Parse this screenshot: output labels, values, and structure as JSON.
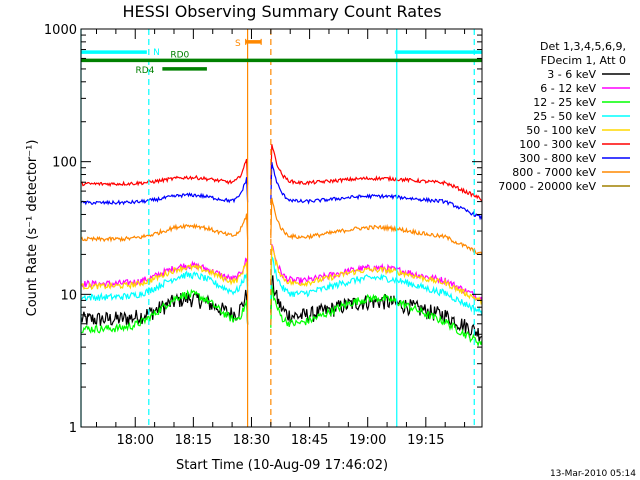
{
  "chart_data": {
    "type": "line",
    "title": "HESSI Observing Summary Count Rates",
    "xlabel": "Start Time (10-Aug-09 17:46:02)",
    "ylabel": "Count Rate (s⁻¹ detector⁻¹)",
    "yscale": "log",
    "ylim": [
      1,
      1000
    ],
    "xlim_minutes_from_start": [
      0,
      103.5
    ],
    "x_tick_labels": [
      "18:00",
      "18:15",
      "18:30",
      "18:45",
      "19:00",
      "19:15"
    ],
    "x_tick_minutes": [
      14,
      29,
      44,
      59,
      74,
      89
    ],
    "y_tick_labels": [
      "1",
      "10",
      "100",
      "1000"
    ],
    "y_tick_values": [
      1,
      10,
      100,
      1000
    ],
    "grid": false,
    "legend_position": "right",
    "legend_header": [
      "Det 1,3,4,5,6,9,",
      "FDecim 1, Att 0"
    ],
    "series": [
      {
        "name": "3 - 6 keV",
        "color": "#000000",
        "base": 6.5,
        "hump": 2.8,
        "noise": 0.14
      },
      {
        "name": "6 - 12 keV",
        "color": "#ff00ff",
        "base": 12,
        "hump": 4.5,
        "noise": 0.06
      },
      {
        "name": "12 - 25 keV",
        "color": "#00ff00",
        "base": 5.5,
        "hump": 4.5,
        "noise": 0.07
      },
      {
        "name": "25 - 50 keV",
        "color": "#00ffff",
        "base": 9.5,
        "hump": 4.5,
        "noise": 0.06
      },
      {
        "name": "50 - 100 keV",
        "color": "#ffd800",
        "base": 11.5,
        "hump": 4.5,
        "noise": 0.05
      },
      {
        "name": "100 - 300 keV",
        "color": "#ff0000",
        "base": 68,
        "hump": 8,
        "noise": 0.03
      },
      {
        "name": "300 - 800 keV",
        "color": "#0000ff",
        "base": 49,
        "hump": 7,
        "noise": 0.03
      },
      {
        "name": "800 - 7000 keV",
        "color": "#ff8800",
        "base": 26,
        "hump": 7,
        "noise": 0.035
      },
      {
        "name": "7000 - 20000 keV",
        "color": "#a08000",
        "base": 0,
        "hump": 0,
        "noise": 0
      }
    ],
    "time_bars": {
      "RD0": {
        "label": "RD0",
        "color": "#008000",
        "start_min": 0,
        "end_min": 103.5,
        "level_value": 580
      },
      "RD4": {
        "label": "RD4",
        "color": "#008000",
        "start_min": 21,
        "end_min": 32.5,
        "level_value": 500
      },
      "N": {
        "label": "N",
        "color": "#00ffff",
        "segments": [
          [
            0,
            17
          ],
          [
            81,
            103.5
          ]
        ],
        "level_value": 670
      },
      "S": {
        "label": "S",
        "color": "#ff8800",
        "segments": [
          [
            42.5,
            46.5
          ]
        ],
        "level_value": 800
      }
    },
    "vertical_markers": [
      {
        "minute": 0,
        "color": "#00ffff",
        "style": "solid"
      },
      {
        "minute": 17.5,
        "color": "#00ffff",
        "style": "dashed"
      },
      {
        "minute": 43,
        "color": "#ff8800",
        "style": "solid"
      },
      {
        "minute": 49,
        "color": "#ff8800",
        "style": "dashed"
      },
      {
        "minute": 81.5,
        "color": "#00ffff",
        "style": "solid"
      },
      {
        "minute": 101.5,
        "color": "#00ffff",
        "style": "dashed"
      }
    ],
    "saa_gap_minutes": [
      43,
      49
    ]
  },
  "footer": {
    "timestamp": "13-Mar-2010 05:14"
  }
}
